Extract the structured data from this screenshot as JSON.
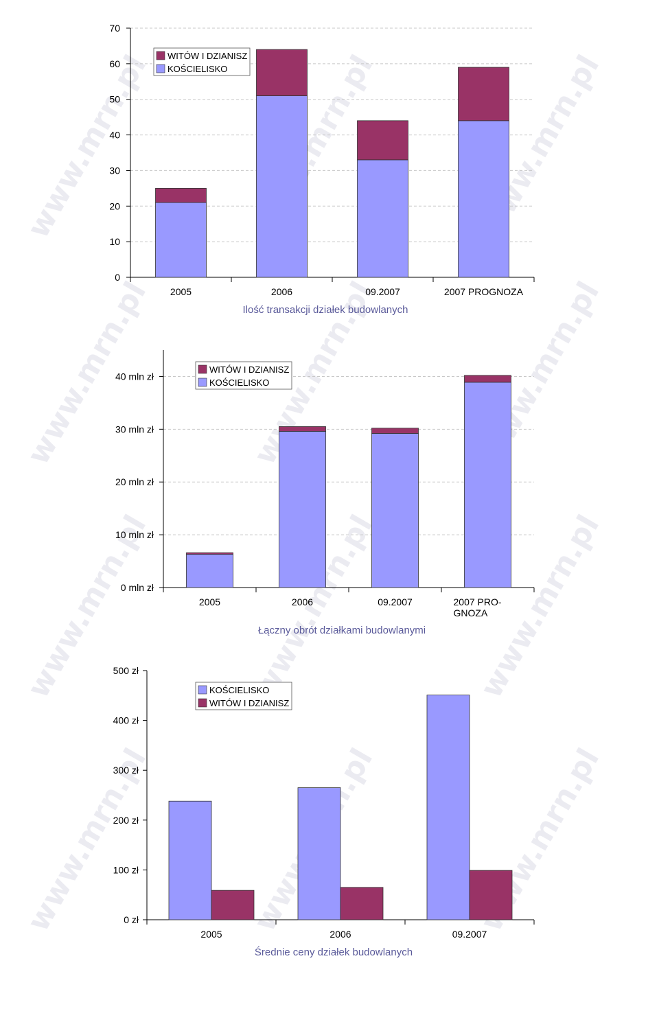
{
  "colors": {
    "lavender": "#9999ff",
    "maroon": "#993366",
    "axis": "#000000",
    "grid": "#c8c8c8",
    "title": "#5a5a9a"
  },
  "watermark": "www.mrn.pl",
  "chart_data": [
    {
      "type": "bar",
      "stacked": true,
      "title": "Ilość transakcji działek budowlanych",
      "categories": [
        "2005",
        "2006",
        "09.2007",
        "2007 PROGNOZA"
      ],
      "series": [
        {
          "name": "KOŚCIELISKO",
          "color": "#9999ff",
          "values": [
            21,
            51,
            33,
            44
          ]
        },
        {
          "name": "WITÓW I DZIANISZ",
          "color": "#993366",
          "values": [
            4,
            13,
            11,
            15
          ]
        }
      ],
      "legend_order": [
        "WITÓW I DZIANISZ",
        "KOŚCIELISKO"
      ],
      "yticks": [
        "0",
        "10",
        "20",
        "30",
        "40",
        "50",
        "60",
        "70"
      ],
      "ylim": [
        0,
        70
      ],
      "grid": true,
      "legend": "top-left"
    },
    {
      "type": "bar",
      "stacked": true,
      "title": "Łączny obrót działkami budowlanymi",
      "categories": [
        "2005",
        "2006",
        "09.2007",
        "2007 PRO-\nGNOZA"
      ],
      "series": [
        {
          "name": "KOŚCIELISKO",
          "color": "#9999ff",
          "values": [
            6.3,
            29.6,
            29.2,
            38.9
          ]
        },
        {
          "name": "WITÓW I DZIANISZ",
          "color": "#993366",
          "values": [
            0.3,
            0.9,
            1.0,
            1.3
          ]
        }
      ],
      "legend_order": [
        "WITÓW I DZIANISZ",
        "KOŚCIELISKO"
      ],
      "yticks": [
        "0 mln zł",
        "10 mln zł",
        "20 mln zł",
        "30 mln zł",
        "40 mln zł"
      ],
      "ytick_values": [
        0,
        10,
        20,
        30,
        40
      ],
      "ylim": [
        0,
        45
      ],
      "grid": true,
      "legend": "top-left"
    },
    {
      "type": "bar",
      "stacked": false,
      "title": "Średnie ceny działek budowlanych",
      "categories": [
        "2005",
        "2006",
        "09.2007"
      ],
      "series": [
        {
          "name": "KOŚCIELISKO",
          "color": "#9999ff",
          "values": [
            238,
            265,
            451
          ]
        },
        {
          "name": "WITÓW I DZIANISZ",
          "color": "#993366",
          "values": [
            59,
            65,
            99
          ]
        }
      ],
      "legend_order": [
        "KOŚCIELISKO",
        "WITÓW I DZIANISZ"
      ],
      "yticks": [
        "0 zł",
        "100 zł",
        "200 zł",
        "300 zł",
        "400 zł",
        "500 zł"
      ],
      "ytick_values": [
        0,
        100,
        200,
        300,
        400,
        500
      ],
      "ylim": [
        0,
        500
      ],
      "grid": false,
      "legend": "top-left"
    }
  ]
}
